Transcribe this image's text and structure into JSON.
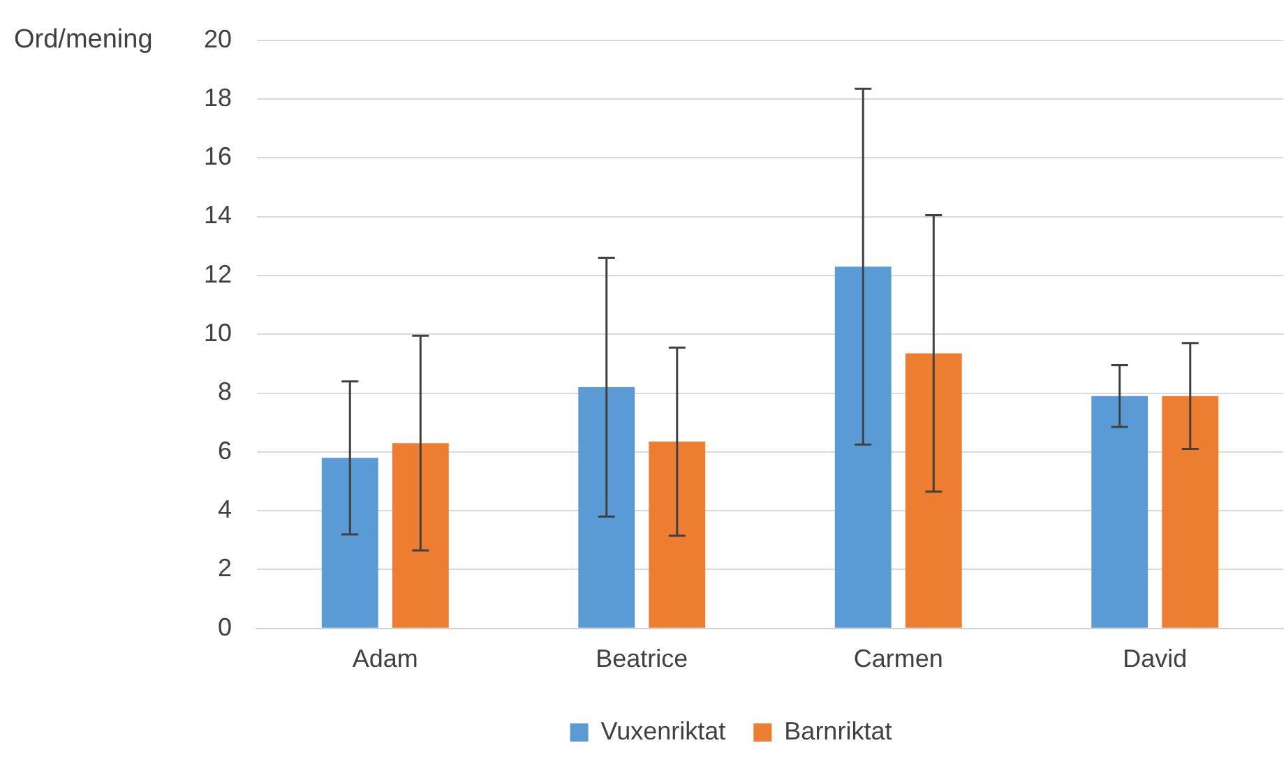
{
  "chart_data": {
    "type": "bar",
    "ylabel": "Ord/mening",
    "categories": [
      "Adam",
      "Beatrice",
      "Carmen",
      "David"
    ],
    "series": [
      {
        "name": "Vuxenriktat",
        "color": "#5b9bd5",
        "values": [
          5.8,
          8.2,
          12.3,
          7.9
        ],
        "errors": [
          2.6,
          4.4,
          6.05,
          1.05
        ]
      },
      {
        "name": "Barnriktat",
        "color": "#ed7d31",
        "values": [
          6.3,
          6.35,
          9.35,
          7.9
        ],
        "errors": [
          3.65,
          3.2,
          4.7,
          1.8
        ]
      }
    ],
    "ylim": [
      0,
      20
    ],
    "yticks": [
      0,
      2,
      4,
      6,
      8,
      10,
      12,
      14,
      16,
      18,
      20
    ],
    "grid": "y",
    "legend": "bottom"
  }
}
